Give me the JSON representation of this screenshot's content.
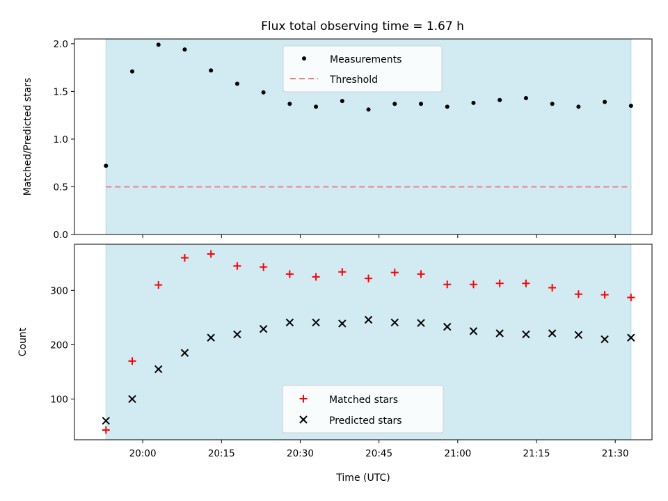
{
  "chart_data": {
    "title": "Flux total observing time = 1.67 h",
    "xlabel": "Time (UTC)",
    "x_ticks": [
      "20:00",
      "20:15",
      "20:30",
      "20:45",
      "21:00",
      "21:15",
      "21:30"
    ],
    "x_range": [
      "19:47",
      "21:37"
    ],
    "shaded_interval": [
      "19:53",
      "21:33"
    ],
    "shade_color": "#add8e6",
    "x": [
      "19:53",
      "19:58",
      "20:03",
      "20:08",
      "20:13",
      "20:18",
      "20:23",
      "20:28",
      "20:33",
      "20:38",
      "20:43",
      "20:48",
      "20:53",
      "20:58",
      "21:03",
      "21:08",
      "21:13",
      "21:18",
      "21:23",
      "21:28",
      "21:33"
    ],
    "panels": [
      {
        "type": "scatter",
        "ylabel": "Matched/Predicted stars",
        "ylim": [
          0,
          2.05
        ],
        "y_ticks": [
          "0.0",
          "0.5",
          "1.0",
          "1.5",
          "2.0"
        ],
        "series": [
          {
            "name": "Measurements",
            "marker": "dot",
            "color": "#000000",
            "values": [
              0.72,
              1.71,
              1.99,
              1.94,
              1.72,
              1.58,
              1.49,
              1.37,
              1.34,
              1.4,
              1.31,
              1.37,
              1.37,
              1.34,
              1.38,
              1.41,
              1.43,
              1.37,
              1.34,
              1.39,
              1.35
            ]
          }
        ],
        "threshold": {
          "name": "Threshold",
          "value": 0.5,
          "color": "#f08080",
          "style": "dashed"
        },
        "legend_position": "top-center"
      },
      {
        "type": "scatter",
        "ylabel": "Count",
        "ylim": [
          25,
          385
        ],
        "y_ticks": [
          "100",
          "200",
          "300"
        ],
        "series": [
          {
            "name": "Matched stars",
            "marker": "plus",
            "color": "#ff0000",
            "values": [
              43,
              170,
              310,
              360,
              367,
              345,
              343,
              330,
              325,
              334,
              322,
              333,
              330,
              311,
              311,
              313,
              313,
              305,
              293,
              292,
              287
            ]
          },
          {
            "name": "Predicted stars",
            "marker": "cross",
            "color": "#000000",
            "values": [
              60,
              100,
              155,
              185,
              213,
              219,
              229,
              241,
              241,
              239,
              246,
              241,
              240,
              233,
              225,
              221,
              219,
              221,
              218,
              210,
              213
            ]
          }
        ],
        "legend_position": "bottom-center"
      }
    ]
  }
}
